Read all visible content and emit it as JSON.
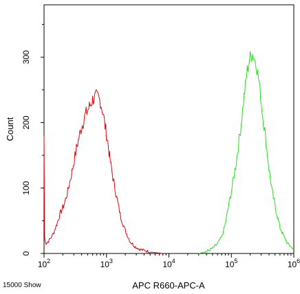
{
  "chart_data": {
    "type": "line",
    "title": "",
    "xlabel": "APC R660-APC-A",
    "ylabel": "Count",
    "x_scale": "log",
    "xlim": [
      100,
      1000000
    ],
    "ylim": [
      0,
      380
    ],
    "x_ticks": [
      {
        "base": "10",
        "exp": "2",
        "value": 100
      },
      {
        "base": "10",
        "exp": "3",
        "value": 1000
      },
      {
        "base": "10",
        "exp": "4",
        "value": 10000
      },
      {
        "base": "10",
        "exp": "5",
        "value": 100000
      },
      {
        "base": "10",
        "exp": "6",
        "value": 1000000
      }
    ],
    "y_ticks": [
      {
        "label": "0",
        "value": 0
      },
      {
        "label": "100",
        "value": 100
      },
      {
        "label": "200",
        "value": 200
      },
      {
        "label": "300",
        "value": 300
      }
    ],
    "grid": false,
    "series": [
      {
        "color": "#e8000b",
        "x": [
          100,
          102,
          108,
          115,
          125,
          140,
          160,
          180,
          210,
          240,
          280,
          330,
          390,
          450,
          520,
          600,
          680,
          740,
          800,
          880,
          950,
          1050,
          1150,
          1300,
          1500,
          1700,
          2000,
          2400,
          2900,
          3500,
          4300,
          5200,
          6500,
          8000
        ],
        "y": [
          180,
          25,
          15,
          18,
          22,
          30,
          45,
          60,
          75,
          95,
          125,
          160,
          190,
          210,
          222,
          235,
          240,
          238,
          232,
          215,
          195,
          170,
          140,
          110,
          80,
          55,
          35,
          18,
          10,
          6,
          4,
          2,
          1,
          0
        ]
      },
      {
        "color": "#22e01a",
        "x": [
          30000,
          40000,
          50000,
          60000,
          70000,
          80000,
          100000,
          120000,
          140000,
          160000,
          180000,
          200000,
          220000,
          250000,
          280000,
          310000,
          350000,
          400000,
          450000,
          520000,
          600000,
          700000,
          800000,
          900000,
          1000000
        ],
        "y": [
          0,
          3,
          8,
          15,
          25,
          45,
          95,
          140,
          190,
          240,
          280,
          300,
          305,
          290,
          260,
          220,
          180,
          130,
          95,
          65,
          40,
          25,
          15,
          10,
          8
        ]
      }
    ]
  },
  "footer": {
    "note": "15000 Show"
  }
}
